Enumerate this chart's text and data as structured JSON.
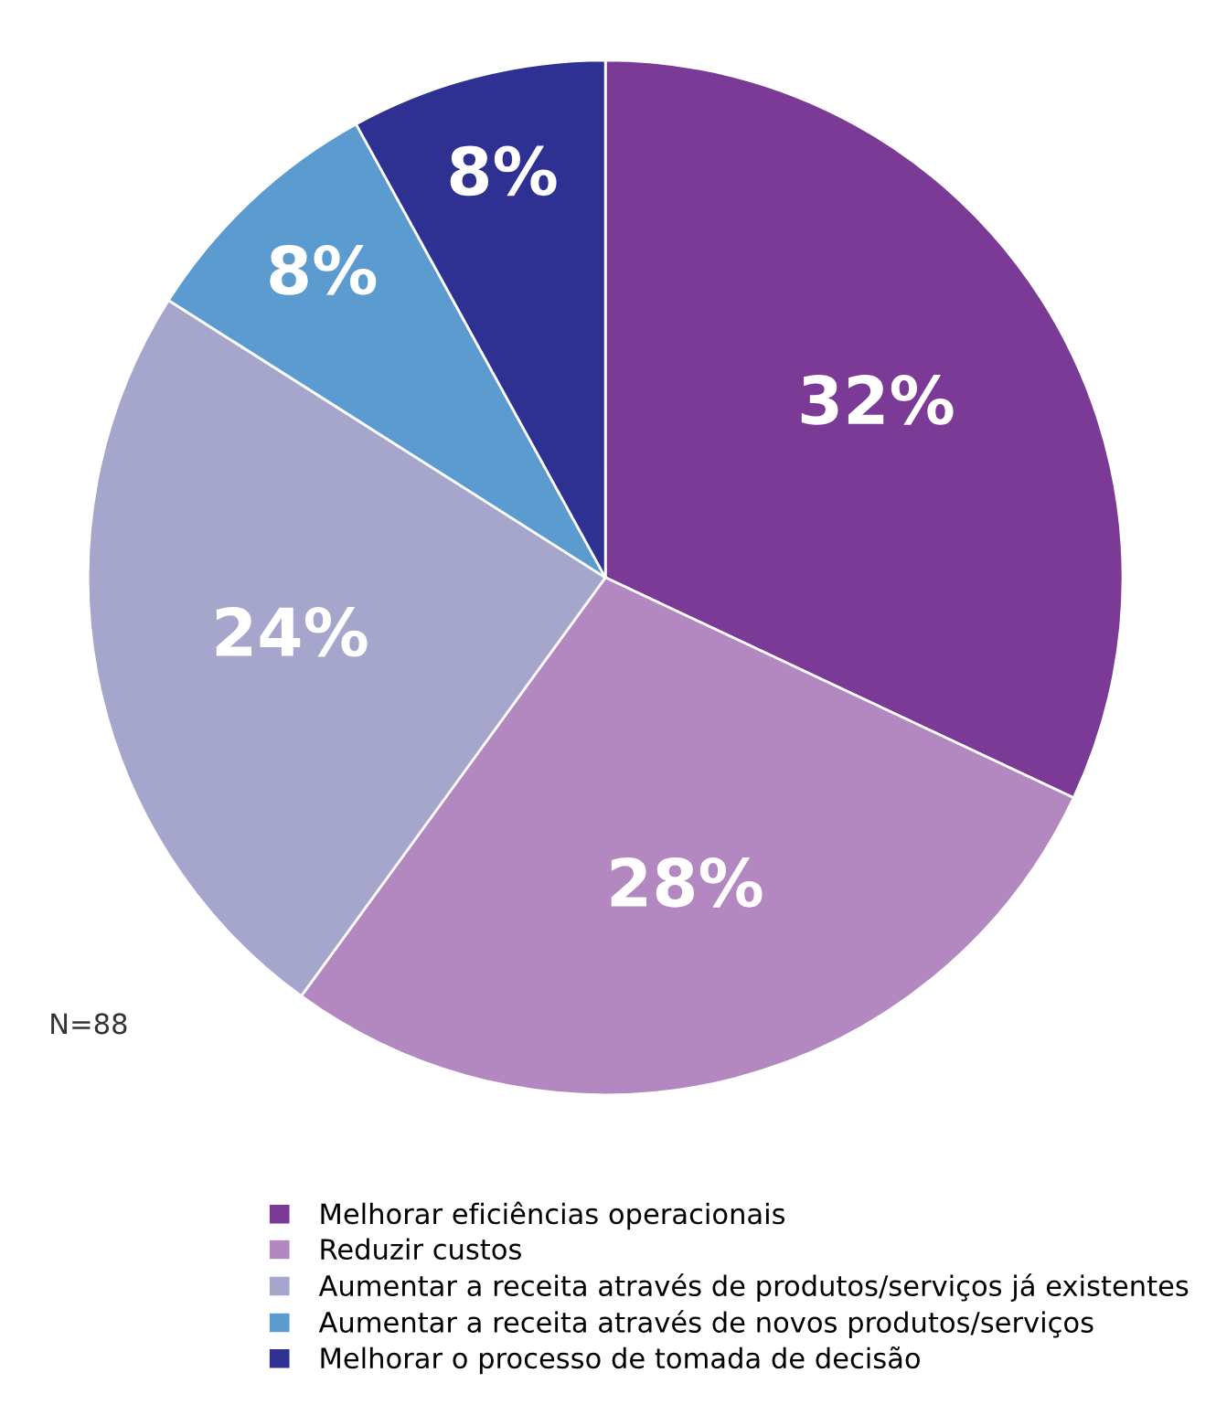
{
  "chart_data": {
    "type": "pie",
    "categories": [
      "Melhorar eficiências operacionais",
      "Reduzir custos",
      "Aumentar a receita através de produtos/serviços já existentes",
      "Aumentar a receita através de novos produtos/serviços",
      "Melhorar o processo de tomada de decisão"
    ],
    "values": [
      32,
      28,
      24,
      8,
      8
    ],
    "colors": [
      "#7b3a96",
      "#b388c0",
      "#a6a6cc",
      "#5b9bd0",
      "#2e3192"
    ],
    "value_labels": [
      "32%",
      "28%",
      "24%",
      "8%",
      "8%"
    ],
    "annotations": [
      "N=88"
    ],
    "legend": "bottom"
  }
}
